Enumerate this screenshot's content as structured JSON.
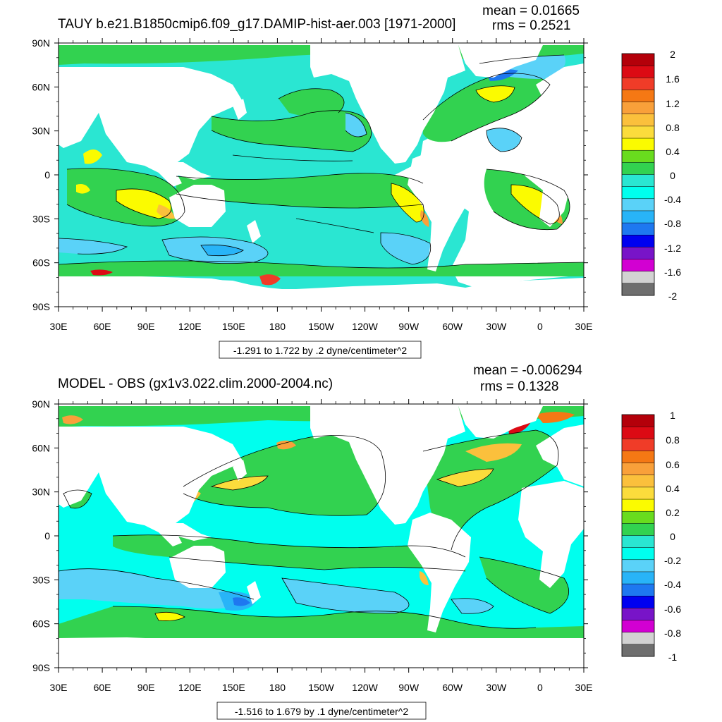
{
  "panels": [
    {
      "title": "TAUY b.e21.B1850cmip6.f09_g17.DAMIP-hist-aer.003 [1971-2000]",
      "mean_text": "mean = 0.01665",
      "rms_text": "rms = 0.2521",
      "footer": "-1.291 to 1.722 by .2 dyne/centimeter^2"
    },
    {
      "title": "MODEL - OBS (gx1v3.022.clim.2000-2004.nc)",
      "mean_text": "mean = -0.006294",
      "rms_text": "rms = 0.1328",
      "footer": "-1.516 to 1.679 by .1 dyne/centimeter^2"
    }
  ],
  "chart_data": [
    {
      "type": "heatmap",
      "variable": "TAUY",
      "title": "TAUY b.e21.B1850cmip6.f09_g17.DAMIP-hist-aer.003 [1971-2000]",
      "mean": 0.01665,
      "rms": 0.2521,
      "x_ticks": [
        "30E",
        "60E",
        "90E",
        "120E",
        "150E",
        "180",
        "150W",
        "120W",
        "90W",
        "60W",
        "30W",
        "0",
        "30E"
      ],
      "y_ticks": [
        "90N",
        "60N",
        "30N",
        "0",
        "30S",
        "60S",
        "90S"
      ],
      "lon_range": [
        30,
        390
      ],
      "lat_range": [
        -90,
        90
      ],
      "colorbar": {
        "labels": [
          "2",
          "1.6",
          "1.2",
          "0.8",
          "0.4",
          "0",
          "-0.4",
          "-0.8",
          "-1.2",
          "-1.6",
          "-2"
        ],
        "levels": [
          2,
          1.8,
          1.6,
          1.4,
          1.2,
          1.0,
          0.8,
          0.6,
          0.4,
          0.2,
          0,
          -0.2,
          -0.4,
          -0.6,
          -0.8,
          -1.0,
          -1.2,
          -1.4,
          -1.6,
          -1.8,
          -2
        ],
        "colors": [
          "#b4000a",
          "#dc0a14",
          "#f03c28",
          "#f57814",
          "#f9a03a",
          "#fbc03c",
          "#fbdc3c",
          "#fbfb00",
          "#69dc1e",
          "#32d250",
          "#2ae6d2",
          "#00ffee",
          "#5ad2f8",
          "#28b4f8",
          "#1e78f0",
          "#0000f0",
          "#7814c8",
          "#d200d2",
          "#d2d2d2",
          "#6e6e6e"
        ]
      },
      "contour_interval": 0.2,
      "range": [
        -1.291,
        1.722
      ],
      "units": "dyne/centimeter^2"
    },
    {
      "type": "heatmap",
      "variable": "TAUY difference",
      "title": "MODEL - OBS (gx1v3.022.clim.2000-2004.nc)",
      "mean": -0.006294,
      "rms": 0.1328,
      "x_ticks": [
        "30E",
        "60E",
        "90E",
        "120E",
        "150E",
        "180",
        "150W",
        "120W",
        "90W",
        "60W",
        "30W",
        "0",
        "30E"
      ],
      "y_ticks": [
        "90N",
        "60N",
        "30N",
        "0",
        "30S",
        "60S",
        "90S"
      ],
      "lon_range": [
        30,
        390
      ],
      "lat_range": [
        -90,
        90
      ],
      "colorbar": {
        "labels": [
          "1",
          "0.8",
          "0.6",
          "0.4",
          "0.2",
          "0",
          "-0.2",
          "-0.4",
          "-0.6",
          "-0.8",
          "-1"
        ],
        "levels": [
          1,
          0.9,
          0.8,
          0.7,
          0.6,
          0.5,
          0.4,
          0.3,
          0.2,
          0.1,
          0,
          -0.1,
          -0.2,
          -0.3,
          -0.4,
          -0.5,
          -0.6,
          -0.7,
          -0.8,
          -0.9,
          -1
        ],
        "colors": [
          "#b4000a",
          "#dc0a14",
          "#f03c28",
          "#f57814",
          "#f9a03a",
          "#fbc03c",
          "#fbdc3c",
          "#fbfb00",
          "#69dc1e",
          "#32d250",
          "#2ae6d2",
          "#00ffee",
          "#5ad2f8",
          "#28b4f8",
          "#1e78f0",
          "#0000f0",
          "#7814c8",
          "#d200d2",
          "#d2d2d2",
          "#6e6e6e"
        ]
      },
      "contour_interval": 0.1,
      "range": [
        -1.516,
        1.679
      ],
      "units": "dyne/centimeter^2"
    }
  ]
}
